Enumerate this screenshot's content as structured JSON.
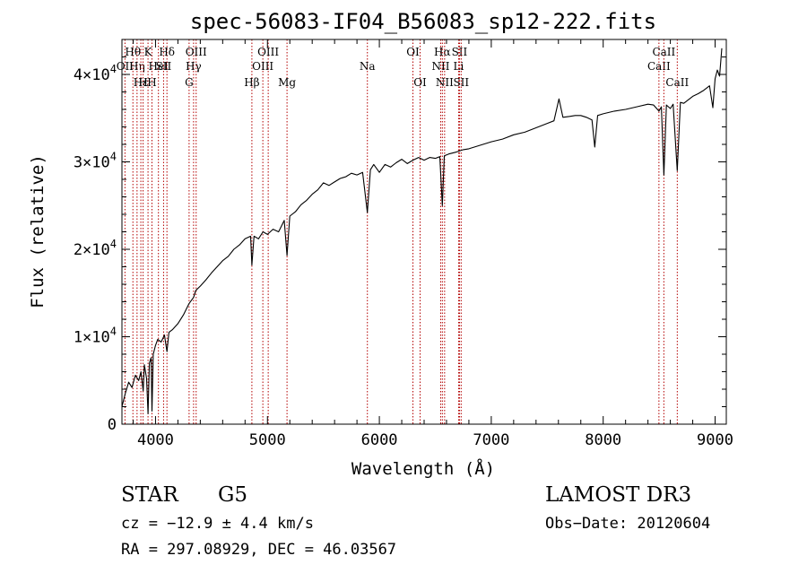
{
  "chart_data": {
    "type": "line",
    "title": "spec-56083-IF04_B56083_sp12-222.fits",
    "xlabel": "Wavelength (Å)",
    "ylabel": "Flux (relative)",
    "xlim": [
      3700,
      9100
    ],
    "ylim": [
      0,
      44000
    ],
    "xticks": [
      {
        "value": 4000,
        "label": "4000"
      },
      {
        "value": 5000,
        "label": "5000"
      },
      {
        "value": 6000,
        "label": "6000"
      },
      {
        "value": 7000,
        "label": "7000"
      },
      {
        "value": 8000,
        "label": "8000"
      },
      {
        "value": 9000,
        "label": "9000"
      }
    ],
    "yticks": [
      {
        "value": 0,
        "label": "0",
        "mantissa": "",
        "exponent": ""
      },
      {
        "value": 10000,
        "label": "1×10⁴",
        "mantissa": "1×10",
        "exponent": "4"
      },
      {
        "value": 20000,
        "label": "2×10⁴",
        "mantissa": "2×10",
        "exponent": "4"
      },
      {
        "value": 30000,
        "label": "3×10⁴",
        "mantissa": "3×10",
        "exponent": "4"
      },
      {
        "value": 40000,
        "label": "4×10⁴",
        "mantissa": "4×10",
        "exponent": "4"
      }
    ],
    "series": [
      {
        "name": "flux",
        "x": [
          3700,
          3730,
          3760,
          3790,
          3820,
          3850,
          3870,
          3890,
          3900,
          3920,
          3933,
          3945,
          3960,
          3968,
          3980,
          4000,
          4020,
          4050,
          4080,
          4102,
          4120,
          4150,
          4200,
          4250,
          4300,
          4340,
          4360,
          4400,
          4450,
          4500,
          4550,
          4600,
          4650,
          4700,
          4750,
          4800,
          4850,
          4861,
          4880,
          4920,
          4960,
          5000,
          5050,
          5100,
          5150,
          5175,
          5200,
          5250,
          5300,
          5350,
          5400,
          5450,
          5500,
          5550,
          5600,
          5650,
          5700,
          5750,
          5800,
          5850,
          5893,
          5920,
          5950,
          6000,
          6050,
          6100,
          6150,
          6200,
          6250,
          6300,
          6350,
          6400,
          6450,
          6500,
          6540,
          6563,
          6580,
          6620,
          6680,
          6750,
          6800,
          6900,
          7000,
          7100,
          7200,
          7300,
          7400,
          7500,
          7560,
          7605,
          7640,
          7700,
          7750,
          7800,
          7850,
          7900,
          7925,
          7950,
          8000,
          8100,
          8200,
          8300,
          8400,
          8450,
          8498,
          8520,
          8542,
          8565,
          8600,
          8625,
          8662,
          8690,
          8720,
          8760,
          8800,
          8850,
          8900,
          8950,
          8980,
          9000,
          9020,
          9040,
          9060
        ],
        "y": [
          2000,
          3500,
          4800,
          4200,
          5600,
          5000,
          6000,
          3800,
          6800,
          5200,
          1200,
          7000,
          7600,
          1500,
          8000,
          9000,
          9700,
          9400,
          10200,
          8300,
          10500,
          10800,
          11500,
          12500,
          13800,
          14500,
          15300,
          15800,
          16500,
          17300,
          18000,
          18700,
          19200,
          20000,
          20500,
          21200,
          21500,
          18200,
          21500,
          21200,
          22000,
          21700,
          22300,
          22000,
          23300,
          19300,
          23800,
          24300,
          25100,
          25600,
          26300,
          26800,
          27600,
          27300,
          27700,
          28100,
          28300,
          28700,
          28500,
          28800,
          24200,
          29100,
          29700,
          28800,
          29700,
          29400,
          29900,
          30300,
          29800,
          30200,
          30500,
          30200,
          30500,
          30400,
          30600,
          25000,
          30700,
          30900,
          31100,
          31400,
          31500,
          31900,
          32300,
          32600,
          33100,
          33400,
          33900,
          34400,
          34700,
          37200,
          35100,
          35200,
          35300,
          35300,
          35100,
          34800,
          31700,
          35300,
          35500,
          35800,
          36000,
          36300,
          36600,
          36500,
          35800,
          36300,
          28500,
          36500,
          36100,
          36600,
          29000,
          36800,
          36700,
          37100,
          37500,
          37800,
          38200,
          38700,
          36200,
          39500,
          40500,
          39800,
          43000
        ]
      }
    ],
    "lines": [
      {
        "wavelength": 3727,
        "row": 2,
        "label": "OII"
      },
      {
        "wavelength": 3798,
        "row": 1,
        "label": "Hθ"
      },
      {
        "wavelength": 3835,
        "row": 2,
        "label": "Hη"
      },
      {
        "wavelength": 3869,
        "row": 3,
        "label": "Hε"
      },
      {
        "wavelength": 3889,
        "row": 3,
        "label": "H"
      },
      {
        "wavelength": 3933,
        "row": 1,
        "label": "K"
      },
      {
        "wavelength": 3968,
        "row": 3,
        "label": "H"
      },
      {
        "wavelength": 4026,
        "row": 2,
        "label": "HeI"
      },
      {
        "wavelength": 4072,
        "row": 2,
        "label": "SII"
      },
      {
        "wavelength": 4102,
        "row": 1,
        "label": "Hδ"
      },
      {
        "wavelength": 4300,
        "row": 3,
        "label": "G"
      },
      {
        "wavelength": 4340,
        "row": 2,
        "label": "Hγ"
      },
      {
        "wavelength": 4363,
        "row": 1,
        "label": "OIII"
      },
      {
        "wavelength": 4861,
        "row": 3,
        "label": "Hβ"
      },
      {
        "wavelength": 4959,
        "row": 2,
        "label": "OIII"
      },
      {
        "wavelength": 5007,
        "row": 1,
        "label": "OIII"
      },
      {
        "wavelength": 5175,
        "row": 3,
        "label": "Mg"
      },
      {
        "wavelength": 5893,
        "row": 2,
        "label": "Na"
      },
      {
        "wavelength": 6300,
        "row": 1,
        "label": "OI"
      },
      {
        "wavelength": 6364,
        "row": 3,
        "label": "OI"
      },
      {
        "wavelength": 6548,
        "row": 2,
        "label": "NII"
      },
      {
        "wavelength": 6563,
        "row": 1,
        "label": "Hα"
      },
      {
        "wavelength": 6583,
        "row": 3,
        "label": "NII"
      },
      {
        "wavelength": 6708,
        "row": 2,
        "label": "Li"
      },
      {
        "wavelength": 6716,
        "row": 1,
        "label": "SII"
      },
      {
        "wavelength": 6731,
        "row": 3,
        "label": "SII"
      },
      {
        "wavelength": 8498,
        "row": 2,
        "label": "CaII"
      },
      {
        "wavelength": 8542,
        "row": 1,
        "label": "CaII"
      },
      {
        "wavelength": 8662,
        "row": 3,
        "label": "CaII"
      }
    ]
  },
  "info": {
    "object_class": "STAR",
    "subclass": "G5",
    "survey": "LAMOST DR3",
    "cz": "cz = −12.9 ± 4.4 km/s",
    "obs_date": "Obs−Date: 20120604",
    "coords": "RA = 297.08929, DEC =  46.03567"
  }
}
